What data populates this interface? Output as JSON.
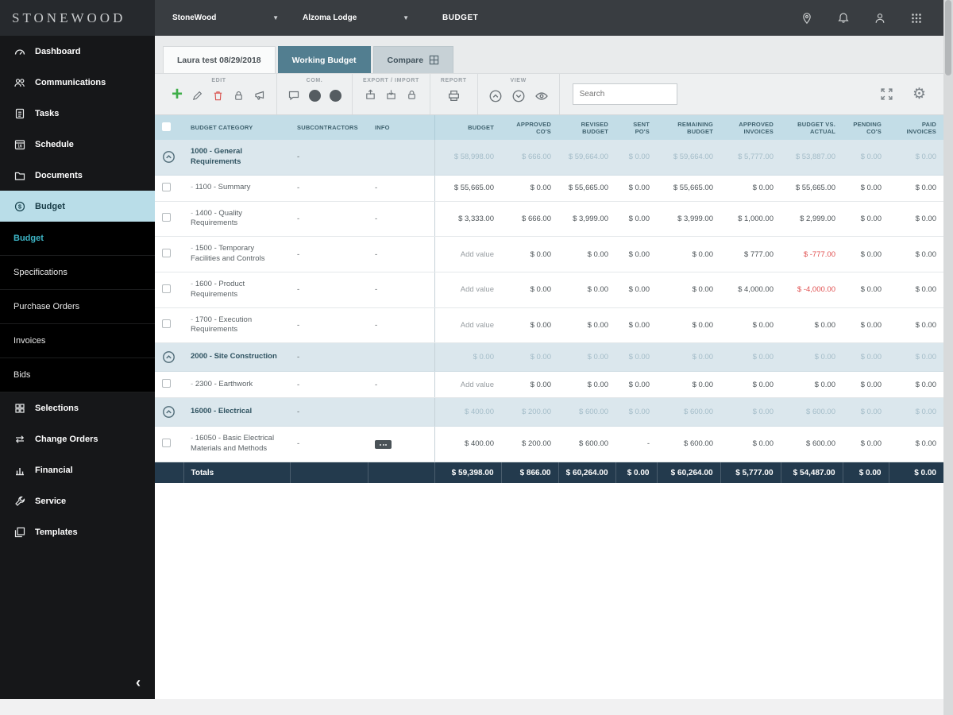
{
  "brand": {
    "logo": "STONEWOOD"
  },
  "topbar": {
    "company_dropdown": "StoneWood",
    "project_dropdown": "Alzoma Lodge",
    "page_label": "BUDGET"
  },
  "sidebar": {
    "main": [
      {
        "label": "Dashboard"
      },
      {
        "label": "Communications"
      },
      {
        "label": "Tasks"
      },
      {
        "label": "Schedule"
      },
      {
        "label": "Documents"
      },
      {
        "label": "Budget"
      }
    ],
    "sub": [
      {
        "label": "Budget"
      },
      {
        "label": "Specifications"
      },
      {
        "label": "Purchase Orders"
      },
      {
        "label": "Invoices"
      },
      {
        "label": "Bids"
      }
    ],
    "lower": [
      {
        "label": "Selections"
      },
      {
        "label": "Change Orders"
      },
      {
        "label": "Financial"
      },
      {
        "label": "Service"
      },
      {
        "label": "Templates"
      }
    ],
    "collapse": "‹"
  },
  "tabs": [
    {
      "label": "Laura test 08/29/2018"
    },
    {
      "label": "Working Budget"
    },
    {
      "label": "Compare"
    }
  ],
  "toolbar": {
    "groups": [
      {
        "label": "EDIT"
      },
      {
        "label": "COM."
      },
      {
        "label": "EXPORT / IMPORT"
      },
      {
        "label": "REPORT"
      },
      {
        "label": "VIEW"
      }
    ],
    "search_placeholder": "Search"
  },
  "colors": {
    "accent_teal": "#3db5c6",
    "active_tab": "#527e90",
    "header_blue": "#c3dde7",
    "totals_navy": "#233a4d",
    "negative_red": "#e04f4f",
    "add_green": "#3fae49"
  },
  "table": {
    "columns": [
      "BUDGET CATEGORY",
      "SUBCONTRACTORS",
      "INFO",
      "BUDGET",
      "APPROVED CO'S",
      "REVISED BUDGET",
      "SENT PO'S",
      "REMAINING BUDGET",
      "APPROVED INVOICES",
      "BUDGET VS. ACTUAL",
      "PENDING CO'S",
      "PAID INVOICES"
    ],
    "rows": [
      {
        "type": "group",
        "category": "1000 - General Requirements",
        "sub": "-",
        "info": "",
        "values": [
          "$ 58,998.00",
          "$ 666.00",
          "$ 59,664.00",
          "$ 0.00",
          "$ 59,664.00",
          "$ 5,777.00",
          "$ 53,887.00",
          "$ 0.00",
          "$ 0.00"
        ]
      },
      {
        "type": "item",
        "category": "1100 - Summary",
        "sub": "-",
        "info": "-",
        "values": [
          "$ 55,665.00",
          "$ 0.00",
          "$ 55,665.00",
          "$ 0.00",
          "$ 55,665.00",
          "$ 0.00",
          "$ 55,665.00",
          "$ 0.00",
          "$ 0.00"
        ]
      },
      {
        "type": "item",
        "category": "1400 - Quality Requirements",
        "sub": "-",
        "info": "-",
        "values": [
          "$ 3,333.00",
          "$ 666.00",
          "$ 3,999.00",
          "$ 0.00",
          "$ 3,999.00",
          "$ 1,000.00",
          "$ 2,999.00",
          "$ 0.00",
          "$ 0.00"
        ]
      },
      {
        "type": "item",
        "category": "1500 - Temporary Facilities and Controls",
        "sub": "-",
        "info": "-",
        "values": [
          "Add value",
          "$ 0.00",
          "$ 0.00",
          "$ 0.00",
          "$ 0.00",
          "$ 777.00",
          "$ -777.00",
          "$ 0.00",
          "$ 0.00"
        ]
      },
      {
        "type": "item",
        "category": "1600 - Product Requirements",
        "sub": "-",
        "info": "-",
        "values": [
          "Add value",
          "$ 0.00",
          "$ 0.00",
          "$ 0.00",
          "$ 0.00",
          "$ 4,000.00",
          "$ -4,000.00",
          "$ 0.00",
          "$ 0.00"
        ]
      },
      {
        "type": "item",
        "category": "1700 - Execution Requirements",
        "sub": "-",
        "info": "-",
        "values": [
          "Add value",
          "$ 0.00",
          "$ 0.00",
          "$ 0.00",
          "$ 0.00",
          "$ 0.00",
          "$ 0.00",
          "$ 0.00",
          "$ 0.00"
        ]
      },
      {
        "type": "group",
        "category": "2000 - Site Construction",
        "sub": "-",
        "info": "",
        "values": [
          "$ 0.00",
          "$ 0.00",
          "$ 0.00",
          "$ 0.00",
          "$ 0.00",
          "$ 0.00",
          "$ 0.00",
          "$ 0.00",
          "$ 0.00"
        ]
      },
      {
        "type": "item",
        "category": "2300 - Earthwork",
        "sub": "-",
        "info": "-",
        "values": [
          "Add value",
          "$ 0.00",
          "$ 0.00",
          "$ 0.00",
          "$ 0.00",
          "$ 0.00",
          "$ 0.00",
          "$ 0.00",
          "$ 0.00"
        ]
      },
      {
        "type": "group",
        "category": "16000 - Electrical",
        "sub": "-",
        "info": "",
        "values": [
          "$ 400.00",
          "$ 200.00",
          "$ 600.00",
          "$ 0.00",
          "$ 600.00",
          "$ 0.00",
          "$ 600.00",
          "$ 0.00",
          "$ 0.00"
        ]
      },
      {
        "type": "item",
        "category": "16050 - Basic Electrical Materials and Methods",
        "sub": "-",
        "info": "badge",
        "values": [
          "$ 400.00",
          "$ 200.00",
          "$ 600.00",
          "-",
          "$ 600.00",
          "$ 0.00",
          "$ 600.00",
          "$ 0.00",
          "$ 0.00"
        ]
      }
    ],
    "totals": {
      "label": "Totals",
      "values": [
        "$ 59,398.00",
        "$ 866.00",
        "$ 60,264.00",
        "$ 0.00",
        "$ 60,264.00",
        "$ 5,777.00",
        "$ 54,487.00",
        "$ 0.00",
        "$ 0.00"
      ]
    }
  }
}
